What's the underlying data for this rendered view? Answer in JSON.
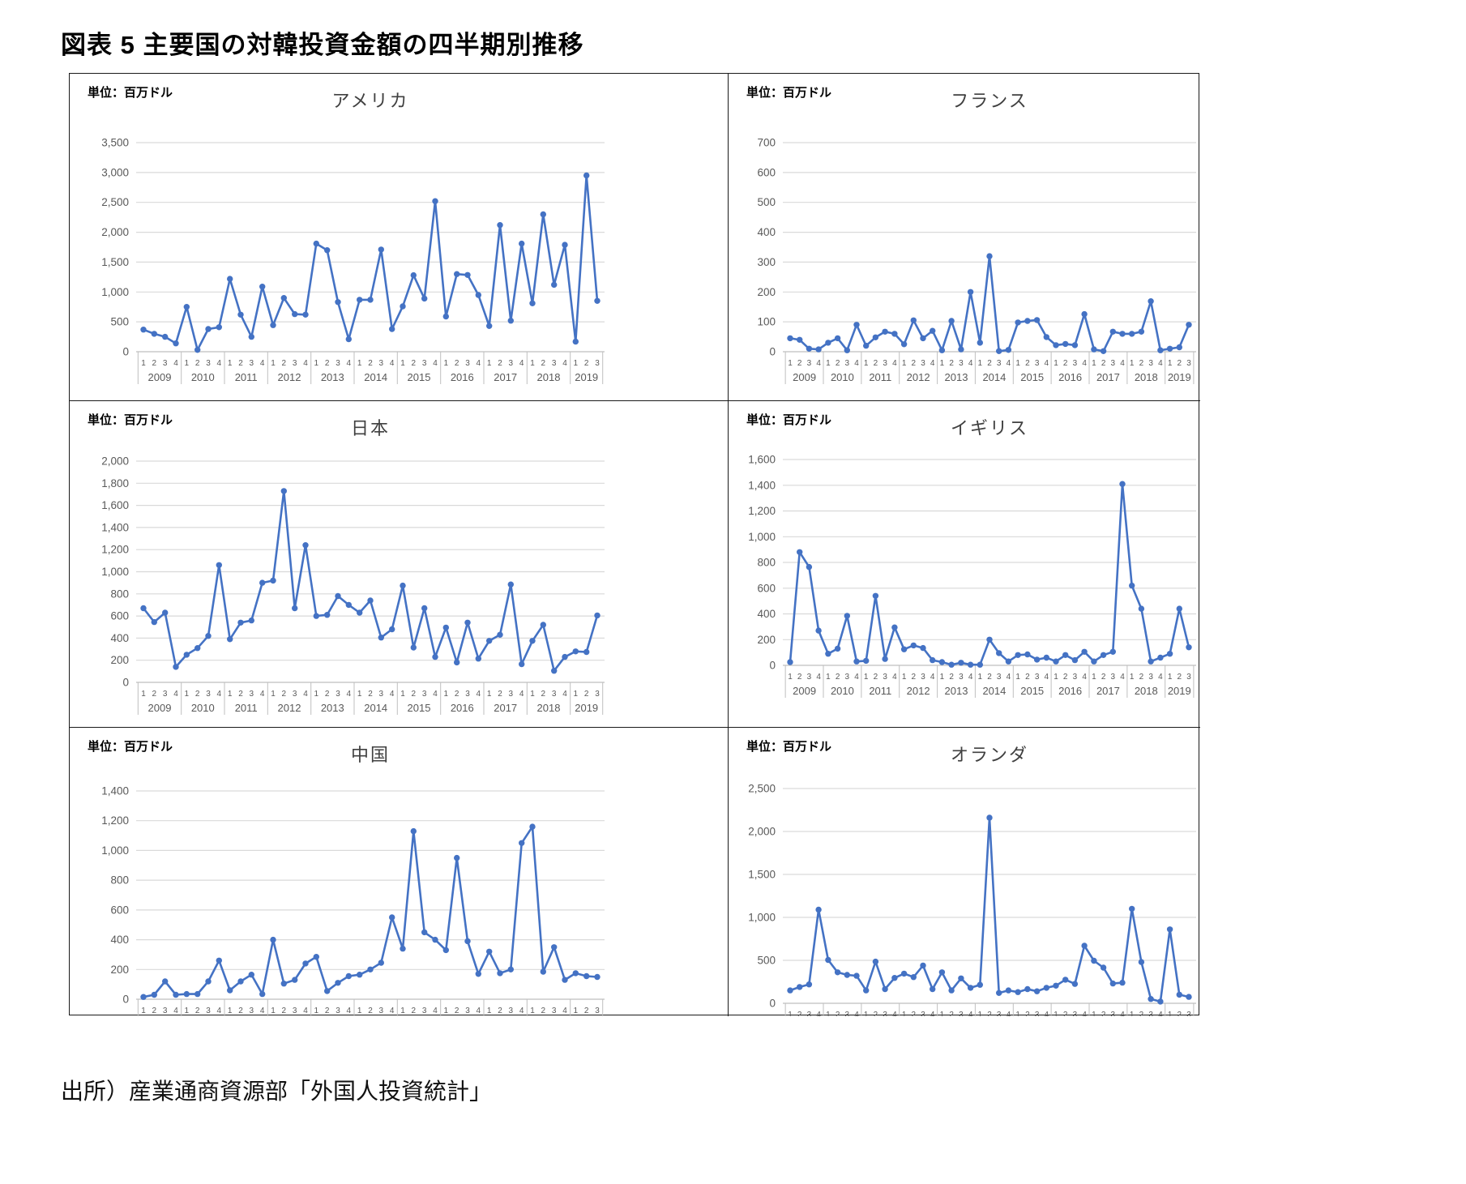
{
  "page": {
    "title": "図表 5 主要国の対韓投資金額の四半期別推移",
    "source": "出所）産業通商資源部「外国人投資統計」"
  },
  "axis": {
    "years": [
      "2009",
      "2010",
      "2011",
      "2012",
      "2013",
      "2014",
      "2015",
      "2016",
      "2017",
      "2018",
      "2019"
    ],
    "quarters_per_year": [
      4,
      4,
      4,
      4,
      4,
      4,
      4,
      4,
      4,
      4,
      3
    ],
    "quarter_labels": [
      "1",
      "2",
      "3",
      "4"
    ]
  },
  "style": {
    "line_color": "#4472C4",
    "grid_color": "#d9d9d9",
    "axis_color": "#bfbfbf",
    "label_color": "#595959"
  },
  "chart_data": [
    {
      "type": "line",
      "title": "アメリカ",
      "unit_label": "単位：百万ドル",
      "ylim": [
        0,
        3500
      ],
      "y_step": 500,
      "grid": true,
      "legend": "none",
      "x": "2009Q1-2019Q3",
      "values": [
        370,
        300,
        250,
        140,
        750,
        30,
        380,
        410,
        1220,
        620,
        250,
        1090,
        445,
        900,
        630,
        620,
        1810,
        1700,
        830,
        210,
        870,
        870,
        1710,
        380,
        760,
        1280,
        890,
        2520,
        590,
        1300,
        1285,
        950,
        430,
        2120,
        520,
        1810,
        810,
        2300,
        1120,
        1790,
        170,
        2950,
        850
      ]
    },
    {
      "type": "line",
      "title": "フランス",
      "unit_label": "単位：百万ドル",
      "ylim": [
        0,
        700
      ],
      "y_step": 100,
      "grid": true,
      "legend": "none",
      "x": "2009Q1-2019Q3",
      "values": [
        45,
        40,
        10,
        8,
        30,
        45,
        5,
        90,
        20,
        48,
        67,
        60,
        25,
        105,
        45,
        70,
        5,
        103,
        8,
        200,
        30,
        320,
        2,
        6,
        98,
        103,
        106,
        49,
        22,
        26,
        22,
        126,
        8,
        2,
        67,
        60,
        60,
        67,
        169,
        5,
        10,
        15,
        90
      ]
    },
    {
      "type": "line",
      "title": "日本",
      "unit_label": "単位：百万ドル",
      "ylim": [
        0,
        2000
      ],
      "y_step": 200,
      "grid": true,
      "legend": "none",
      "x": "2009Q1-2019Q3",
      "values": [
        670,
        545,
        630,
        140,
        250,
        310,
        420,
        1060,
        390,
        540,
        560,
        900,
        920,
        1730,
        670,
        1240,
        600,
        610,
        780,
        700,
        630,
        740,
        405,
        480,
        875,
        315,
        670,
        230,
        495,
        180,
        540,
        215,
        375,
        430,
        885,
        165,
        375,
        520,
        105,
        230,
        280,
        275,
        605
      ]
    },
    {
      "type": "line",
      "title": "イギリス",
      "unit_label": "単位：百万ドル",
      "ylim": [
        0,
        1600
      ],
      "y_step": 200,
      "grid": true,
      "legend": "none",
      "x": "2009Q1-2019Q3",
      "values": [
        25,
        880,
        765,
        270,
        90,
        130,
        385,
        30,
        35,
        540,
        50,
        295,
        125,
        155,
        135,
        40,
        25,
        5,
        20,
        5,
        5,
        200,
        95,
        30,
        80,
        85,
        45,
        60,
        30,
        80,
        40,
        105,
        30,
        80,
        105,
        1410,
        620,
        440,
        30,
        60,
        90,
        440,
        140
      ]
    },
    {
      "type": "line",
      "title": "中国",
      "unit_label": "単位：百万ドル",
      "ylim": [
        0,
        1400
      ],
      "y_step": 200,
      "grid": true,
      "legend": "none",
      "x": "2009Q1-2019Q3",
      "values": [
        15,
        30,
        120,
        30,
        35,
        35,
        120,
        260,
        60,
        120,
        165,
        35,
        400,
        105,
        130,
        240,
        285,
        55,
        110,
        155,
        165,
        200,
        245,
        550,
        340,
        1130,
        450,
        400,
        330,
        950,
        390,
        170,
        320,
        175,
        200,
        1050,
        1160,
        185,
        350,
        130,
        175,
        155,
        150
      ]
    },
    {
      "type": "line",
      "title": "オランダ",
      "unit_label": "単位：百万ドル",
      "ylim": [
        0,
        2500
      ],
      "y_step": 500,
      "grid": true,
      "legend": "none",
      "x": "2009Q1-2019Q3",
      "values": [
        150,
        190,
        220,
        1090,
        505,
        360,
        330,
        320,
        150,
        485,
        165,
        295,
        345,
        305,
        440,
        165,
        360,
        150,
        290,
        180,
        215,
        2160,
        120,
        150,
        130,
        165,
        140,
        180,
        205,
        275,
        225,
        670,
        495,
        415,
        230,
        240,
        1100,
        480,
        50,
        20,
        860,
        100,
        75
      ]
    }
  ]
}
